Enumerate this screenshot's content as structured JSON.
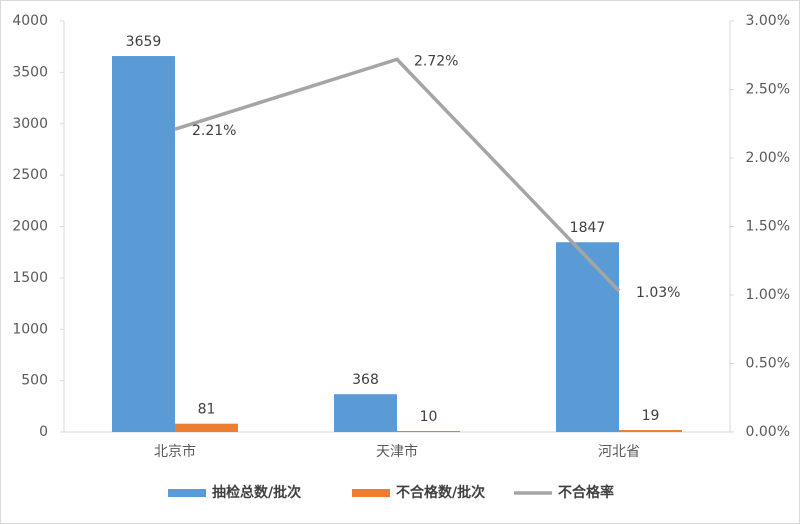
{
  "chart_data": {
    "type": "bar",
    "categories": [
      "北京市",
      "天津市",
      "河北省"
    ],
    "series": [
      {
        "name": "抽检总数/批次",
        "type": "bar",
        "color": "#5b9bd5",
        "values": [
          3659,
          368,
          1847
        ]
      },
      {
        "name": "不合格数/批次",
        "type": "bar",
        "color": "#ed7d31",
        "values": [
          81,
          10,
          19
        ]
      },
      {
        "name": "不合格率",
        "type": "line",
        "color": "#a5a5a5",
        "axis": "y2",
        "values": [
          2.21,
          2.72,
          1.03
        ],
        "value_labels": [
          "2.21%",
          "2.72%",
          "1.03%"
        ]
      }
    ],
    "ylim": [
      0,
      4000
    ],
    "yticks": [
      0,
      500,
      1000,
      1500,
      2000,
      2500,
      3000,
      3500,
      4000
    ],
    "y2lim": [
      0,
      3
    ],
    "y2ticks": [
      {
        "value": 0,
        "label": "0.00%"
      },
      {
        "value": 0.5,
        "label": "0.50%"
      },
      {
        "value": 1,
        "label": "1.00%"
      },
      {
        "value": 1.5,
        "label": "1.50%"
      },
      {
        "value": 2,
        "label": "2.00%"
      },
      {
        "value": 2.5,
        "label": "2.50%"
      },
      {
        "value": 3,
        "label": "3.00%"
      }
    ],
    "legend": "bottom"
  }
}
